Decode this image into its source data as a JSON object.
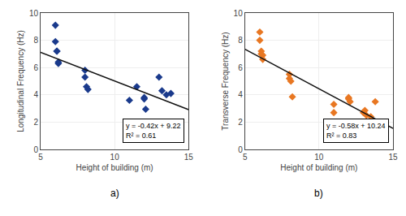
{
  "chart_data": [
    {
      "type": "scatter",
      "title": "a)",
      "xlabel": "Height of building (m)",
      "ylabel": "Longitudinal Frequency (Hz)",
      "series": [
        {
          "type": "scatter",
          "color": "#1a3a8c",
          "marker": "diamond",
          "x": [
            6.0,
            6.0,
            6.1,
            6.1,
            6.2,
            6.2,
            8.0,
            8.0,
            8.1,
            8.2,
            11.0,
            11.5,
            12.0,
            12.0,
            12.1,
            13.0,
            13.2,
            13.5,
            13.8
          ],
          "values": [
            9.1,
            7.9,
            7.2,
            7.2,
            6.3,
            6.4,
            5.8,
            5.3,
            4.6,
            4.4,
            3.6,
            4.6,
            3.8,
            3.7,
            2.95,
            5.3,
            4.3,
            4.0,
            4.1
          ]
        },
        {
          "type": "line",
          "color": "#111111",
          "line_style": "solid",
          "x": [
            5,
            15
          ],
          "values": [
            7.12,
            2.92
          ]
        }
      ],
      "annotations": [
        "y = -0.42x + 9.22\nR² = 0.61"
      ],
      "xlim": [
        5,
        15
      ],
      "ylim": [
        0,
        10
      ],
      "xticks": [
        5,
        10,
        15
      ],
      "yticks": [
        0,
        2,
        4,
        6,
        8,
        10
      ],
      "grid": true
    },
    {
      "type": "scatter",
      "title": "b)",
      "xlabel": "Height of building (m)",
      "ylabel": "Transverse Frequency (Hz)",
      "series": [
        {
          "type": "scatter",
          "color": "#e87722",
          "marker": "diamond",
          "x": [
            6.0,
            6.0,
            6.1,
            6.1,
            6.2,
            6.2,
            8.0,
            8.0,
            8.1,
            8.2,
            11.0,
            11.0,
            12.0,
            12.0,
            12.1,
            13.0,
            13.1,
            13.2,
            13.5,
            13.8
          ],
          "values": [
            8.6,
            8.0,
            7.2,
            7.0,
            6.9,
            6.6,
            5.5,
            5.2,
            5.0,
            3.85,
            3.3,
            2.7,
            3.8,
            3.7,
            3.5,
            2.7,
            2.85,
            2.5,
            2.4,
            3.5
          ]
        },
        {
          "type": "line",
          "color": "#111111",
          "line_style": "solid",
          "x": [
            5,
            15
          ],
          "values": [
            7.34,
            1.54
          ]
        }
      ],
      "annotations": [
        "y = -0.58x + 10.24\nR² = 0.83"
      ],
      "xlim": [
        5,
        15
      ],
      "ylim": [
        0,
        10
      ],
      "xticks": [
        5,
        10,
        15
      ],
      "yticks": [
        0,
        2,
        4,
        6,
        8,
        10
      ],
      "grid": true
    }
  ]
}
